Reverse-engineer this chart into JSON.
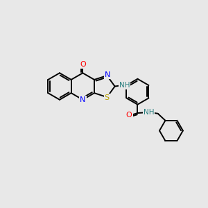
{
  "bg_color": "#e8e8e8",
  "bond_color": "#000000",
  "atom_colors": {
    "N": "#0000ff",
    "O": "#ff0000",
    "S": "#b8a000",
    "H": "#2a8080",
    "C": "#000000"
  },
  "figsize": [
    3.0,
    3.0
  ],
  "dpi": 100,
  "lw": 1.4,
  "fs": 7.5
}
